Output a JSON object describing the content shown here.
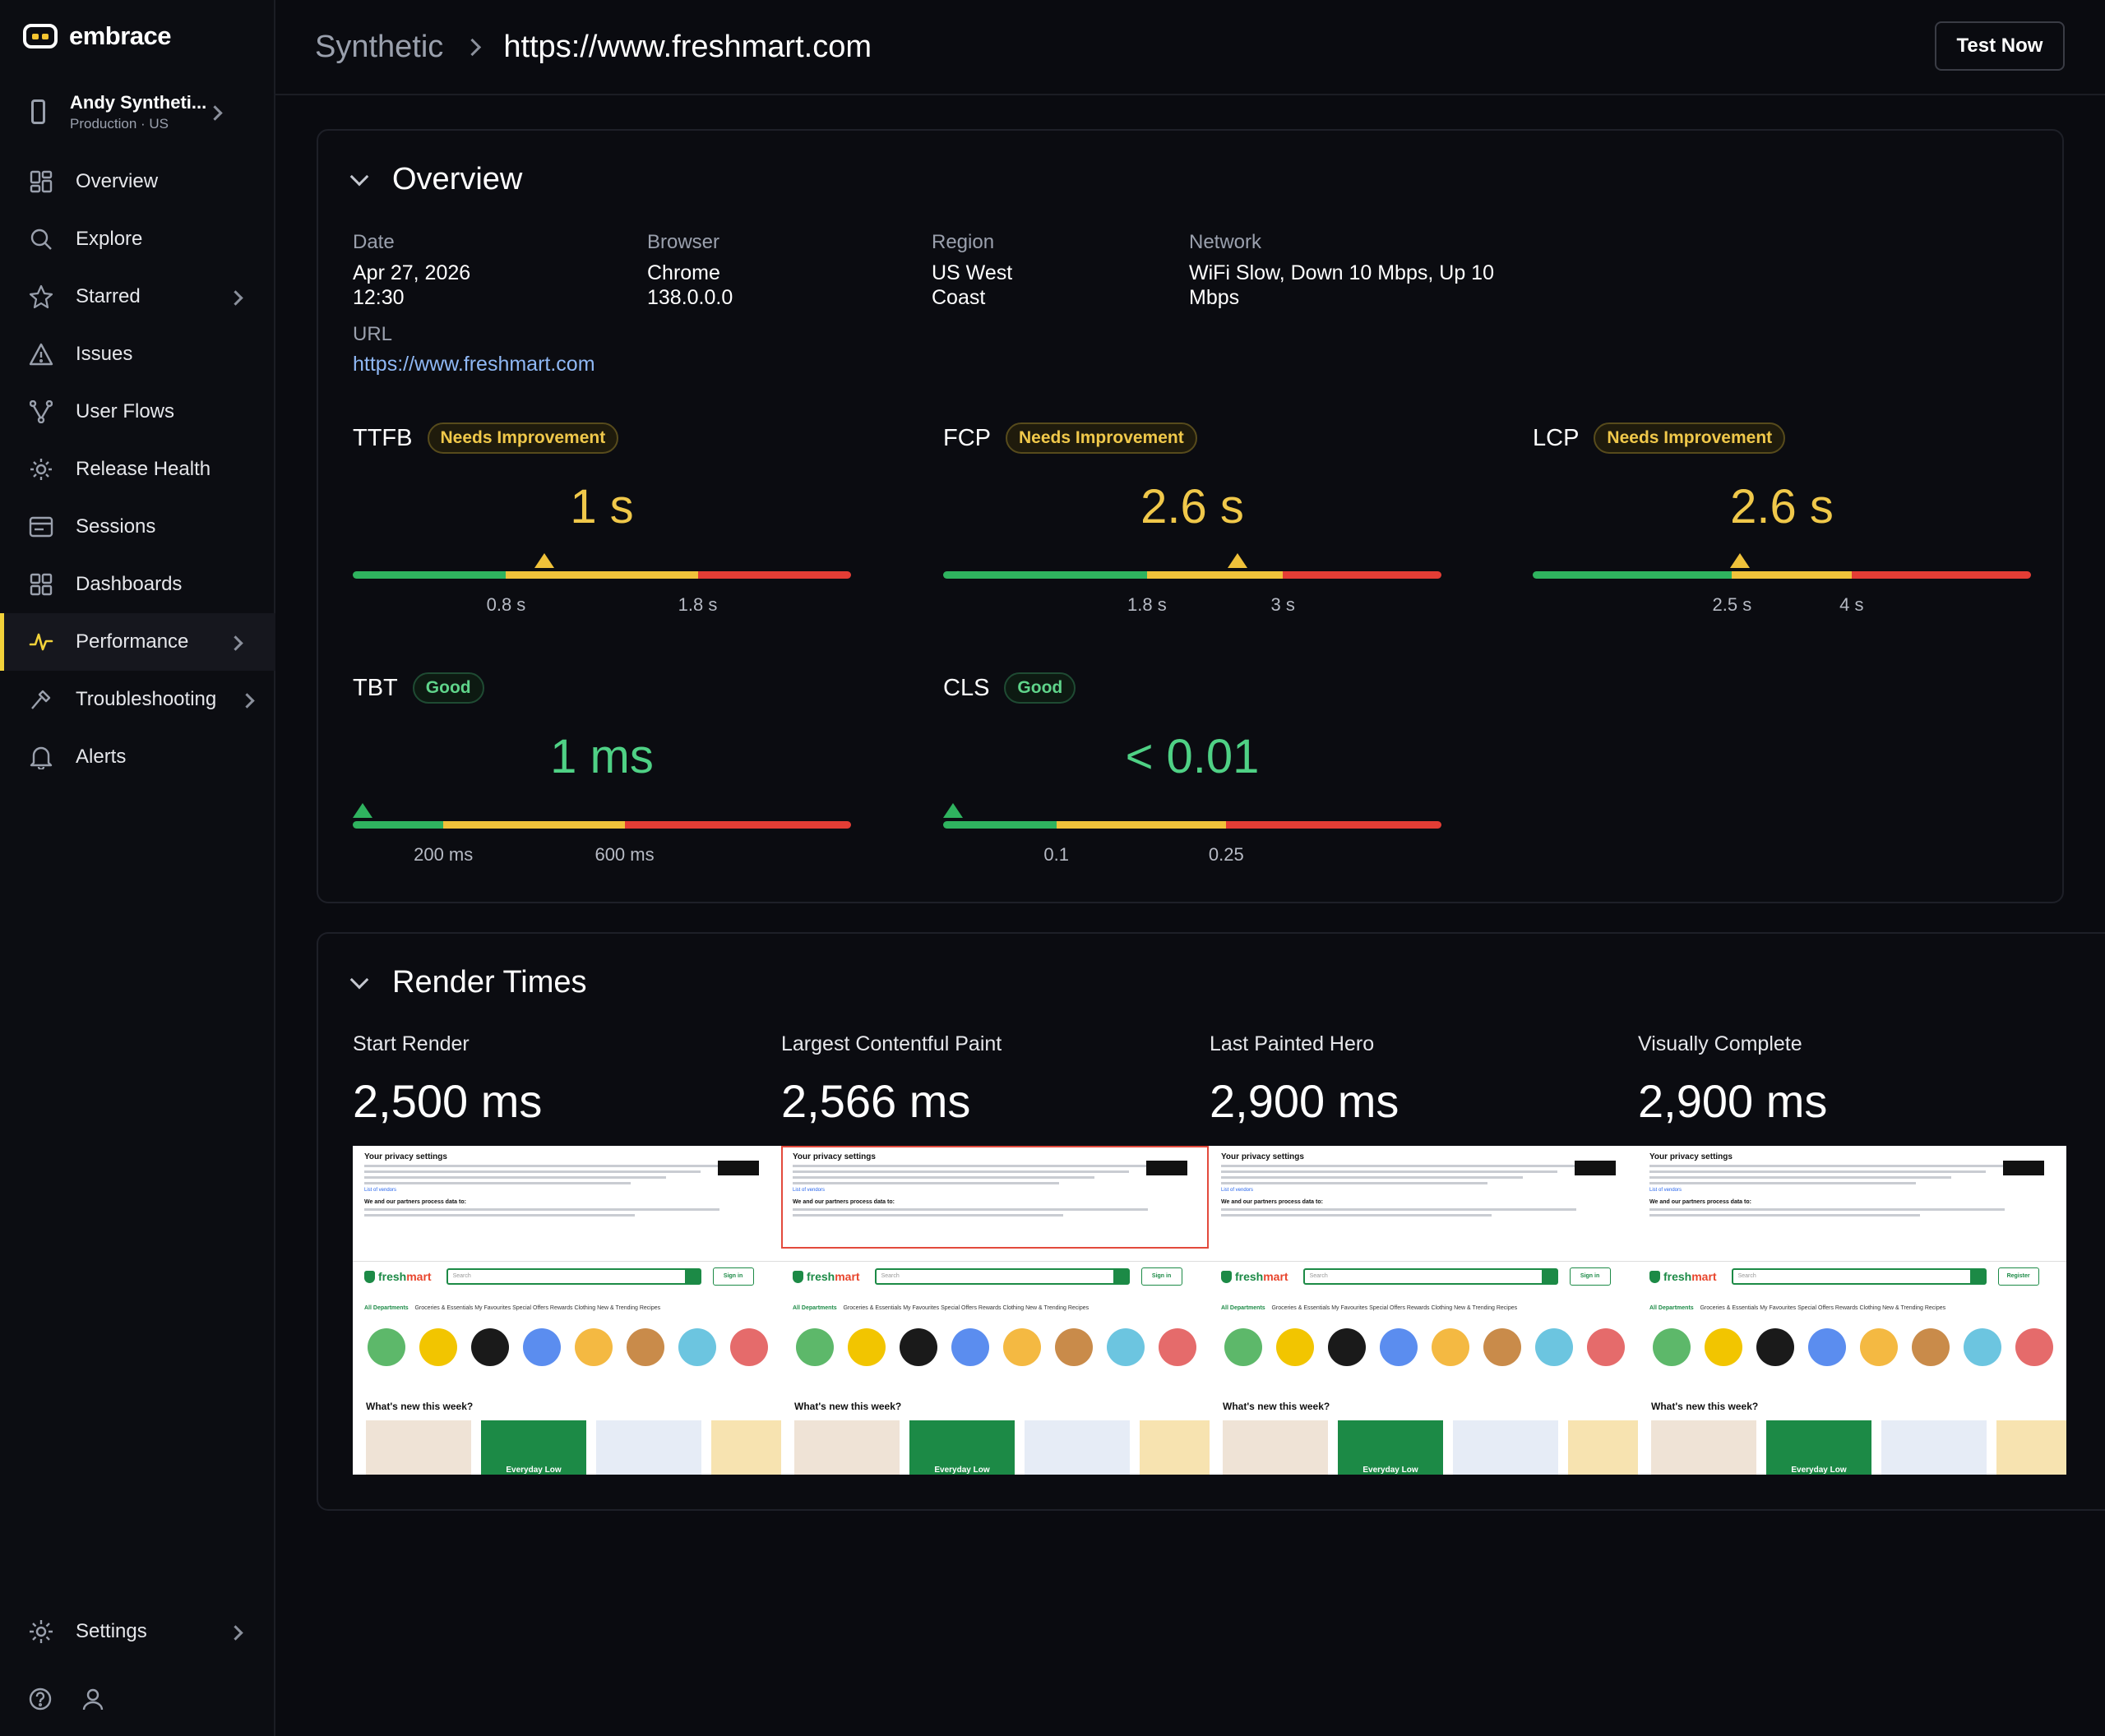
{
  "brand": {
    "name": "embrace"
  },
  "app": {
    "name": "Andy Syntheti...",
    "env": "Production · US"
  },
  "nav": [
    {
      "label": "Overview",
      "icon": "overview-grid-icon"
    },
    {
      "label": "Explore",
      "icon": "search-icon"
    },
    {
      "label": "Starred",
      "icon": "star-icon",
      "chevron": true
    },
    {
      "label": "Issues",
      "icon": "warning-triangle-icon"
    },
    {
      "label": "User Flows",
      "icon": "user-flows-icon"
    },
    {
      "label": "Release Health",
      "icon": "sun-icon"
    },
    {
      "label": "Sessions",
      "icon": "sessions-icon"
    },
    {
      "label": "Dashboards",
      "icon": "dashboards-icon"
    },
    {
      "label": "Performance",
      "icon": "pulse-icon",
      "chevron": true,
      "active": true
    },
    {
      "label": "Troubleshooting",
      "icon": "hammer-icon",
      "chevron": true
    },
    {
      "label": "Alerts",
      "icon": "bell-icon"
    }
  ],
  "settings": {
    "label": "Settings"
  },
  "header": {
    "breadcrumb_root": "Synthetic",
    "breadcrumb_current": "https://www.freshmart.com",
    "test_button": "Test Now"
  },
  "overview": {
    "title": "Overview",
    "date_label": "Date",
    "date_value_1": "Apr 27, 2026",
    "date_value_2": "12:30",
    "browser_label": "Browser",
    "browser_value_1": "Chrome",
    "browser_value_2": "138.0.0.0",
    "region_label": "Region",
    "region_value_1": "US West",
    "region_value_2": "Coast",
    "network_label": "Network",
    "network_value_1": "WiFi Slow, Down 10 Mbps, Up 10",
    "network_value_2": "Mbps",
    "url_label": "URL",
    "url_value": "https://www.freshmart.com"
  },
  "metrics": [
    {
      "name": "TTFB",
      "badge": "Needs Improvement",
      "status": "needs-improvement",
      "value": "1 s",
      "numeric": 1,
      "thresholds": [
        0.8,
        1.8
      ],
      "threshold_labels": [
        "0.8 s",
        "1.8 s"
      ],
      "max": 2.6
    },
    {
      "name": "FCP",
      "badge": "Needs Improvement",
      "status": "needs-improvement",
      "value": "2.6 s",
      "numeric": 2.6,
      "thresholds": [
        1.8,
        3
      ],
      "threshold_labels": [
        "1.8 s",
        "3 s"
      ],
      "max": 4.4
    },
    {
      "name": "LCP",
      "badge": "Needs Improvement",
      "status": "needs-improvement",
      "value": "2.6 s",
      "numeric": 2.6,
      "thresholds": [
        2.5,
        4
      ],
      "threshold_labels": [
        "2.5 s",
        "4 s"
      ],
      "max": 6.25
    },
    {
      "name": "TBT",
      "badge": "Good",
      "status": "good",
      "value": "1 ms",
      "numeric": 1,
      "thresholds": [
        200,
        600
      ],
      "threshold_labels": [
        "200 ms",
        "600 ms"
      ],
      "max": 1100
    },
    {
      "name": "CLS",
      "badge": "Good",
      "status": "good",
      "value": "< 0.01",
      "numeric": 0,
      "thresholds": [
        0.1,
        0.25
      ],
      "threshold_labels": [
        "0.1",
        "0.25"
      ],
      "max": 0.44
    }
  ],
  "render_times": {
    "title": "Render Times",
    "items": [
      {
        "label": "Start Render",
        "value": "2,500 ms"
      },
      {
        "label": "Largest Contentful Paint",
        "value": "2,566 ms"
      },
      {
        "label": "Last Painted Hero",
        "value": "2,900 ms"
      },
      {
        "label": "Visually Complete",
        "value": "2,900 ms"
      }
    ]
  },
  "filmstrip": {
    "privacy_title": "Your privacy settings",
    "partners_title": "We and our partners process data to:",
    "vendors_link": "List of vendors",
    "site_name_a": "fresh",
    "site_name_b": "mart",
    "search_placeholder": "Search",
    "signin": "Sign in",
    "signin_last": "Register",
    "categories_first": "All Departments",
    "categories_rest": "Groceries & Essentials   My Favourites   Special Offers   Rewards   Clothing   New & Trending   Recipes",
    "whats_new": "What's new this week?",
    "tile_text": "Everyday Low",
    "colors": [
      "#5db86a",
      "#f2c500",
      "#1a1a1a",
      "#5b8def",
      "#f4b942",
      "#c98b4a",
      "#6cc5e0",
      "#e56b6b"
    ]
  },
  "colors": {
    "good": "#2fb35f",
    "warn": "#f0c23a",
    "bad": "#e33d35",
    "accent": "#f2d23a"
  }
}
